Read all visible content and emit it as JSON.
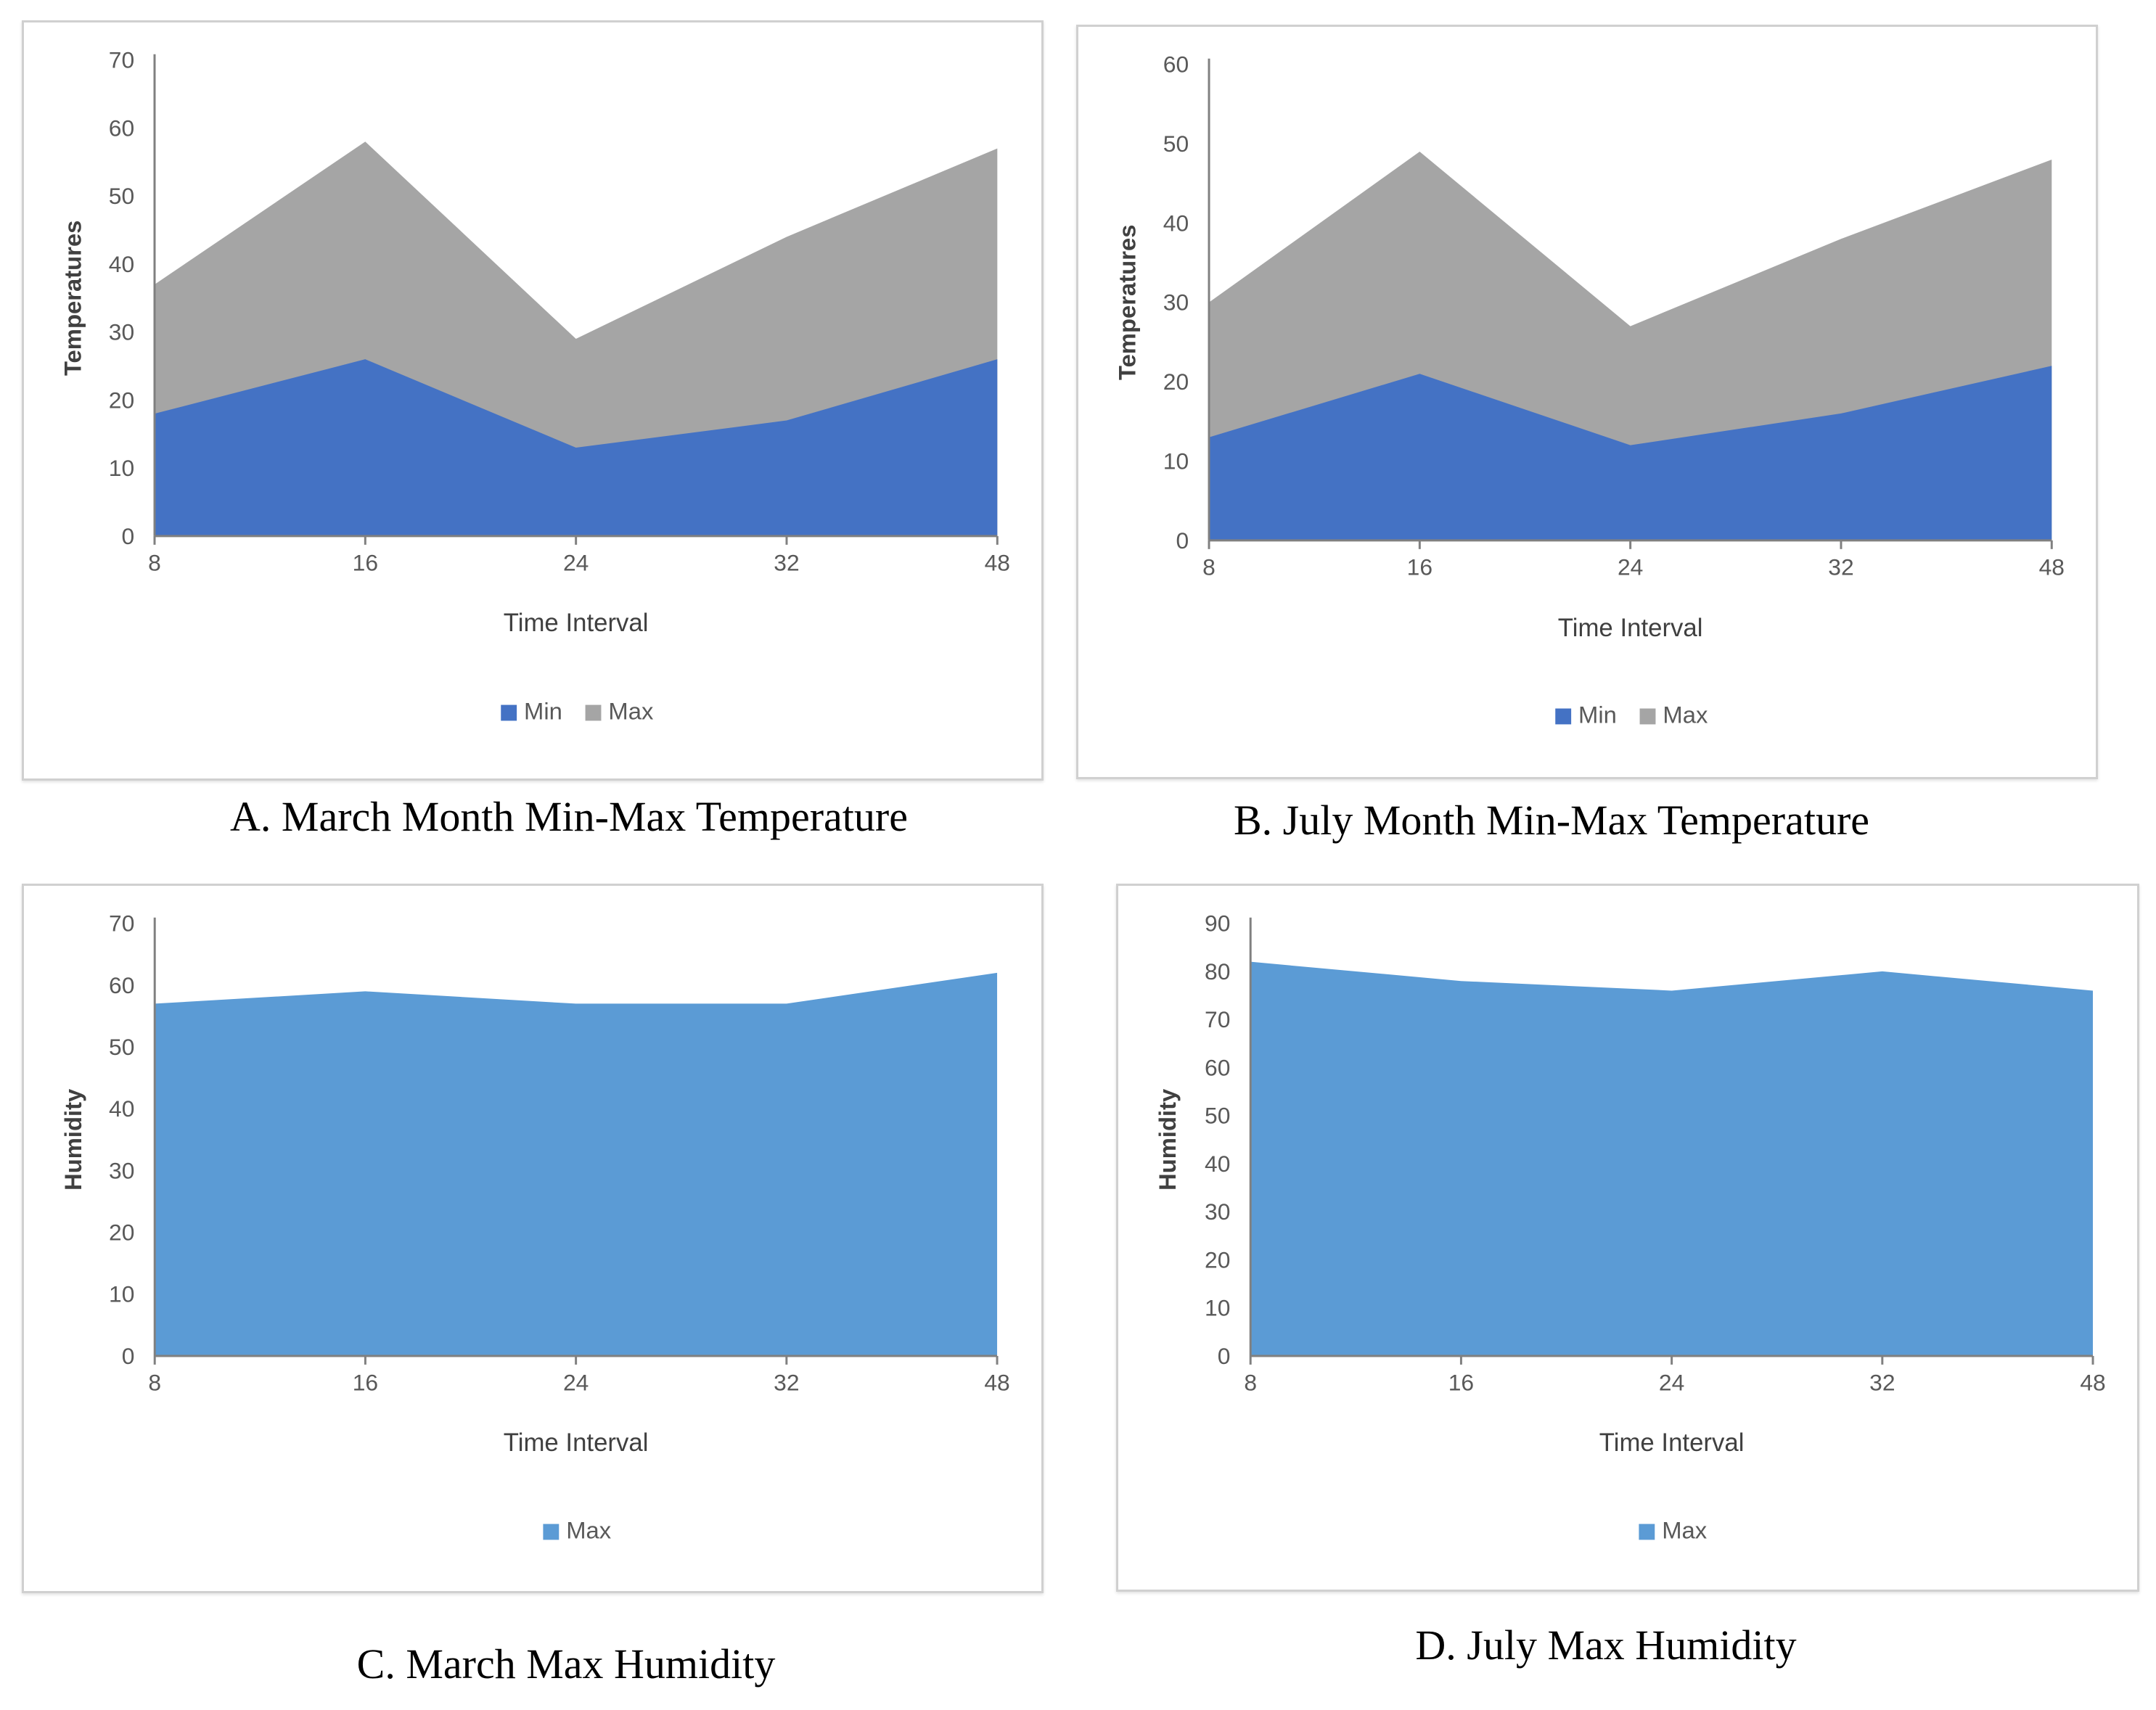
{
  "colors": {
    "min": "#4472c4",
    "max_temp": "#a5a5a5",
    "max_humidity": "#5b9bd5",
    "axis": "#808080",
    "text": "#595959"
  },
  "chart_data": [
    {
      "type": "area",
      "caption": "A. March Month Min-Max Temperature",
      "x": [
        "8",
        "16",
        "24",
        "32",
        "48"
      ],
      "series": [
        {
          "name": "Min",
          "values": [
            18,
            26,
            13,
            17,
            26
          ]
        },
        {
          "name": "Max",
          "values": [
            37,
            58,
            29,
            44,
            57
          ]
        }
      ],
      "xlabel": "Time Interval",
      "ylabel": "Temperatures",
      "ylim": [
        0,
        70
      ],
      "yticks": [
        "0",
        "10",
        "20",
        "30",
        "40",
        "50",
        "60",
        "70"
      ],
      "legend_position": "bottom"
    },
    {
      "type": "area",
      "caption": "B. July Month Min-Max Temperature",
      "x": [
        "8",
        "16",
        "24",
        "32",
        "48"
      ],
      "series": [
        {
          "name": "Min",
          "values": [
            13,
            21,
            12,
            16,
            22
          ]
        },
        {
          "name": "Max",
          "values": [
            30,
            49,
            27,
            38,
            48
          ]
        }
      ],
      "xlabel": "Time Interval",
      "ylabel": "Temperatures",
      "ylim": [
        0,
        60
      ],
      "yticks": [
        "0",
        "10",
        "20",
        "30",
        "40",
        "50",
        "60"
      ],
      "legend_position": "bottom"
    },
    {
      "type": "area",
      "caption": "C. March Max Humidity",
      "x": [
        "8",
        "16",
        "24",
        "32",
        "48"
      ],
      "series": [
        {
          "name": "Max",
          "values": [
            57,
            59,
            57,
            57,
            62
          ]
        }
      ],
      "xlabel": "Time Interval",
      "ylabel": "Humidity",
      "ylim": [
        0,
        70
      ],
      "yticks": [
        "0",
        "10",
        "20",
        "30",
        "40",
        "50",
        "60",
        "70"
      ],
      "legend_position": "bottom"
    },
    {
      "type": "area",
      "caption": "D. July Max Humidity",
      "x": [
        "8",
        "16",
        "24",
        "32",
        "48"
      ],
      "series": [
        {
          "name": "Max",
          "values": [
            82,
            78,
            76,
            80,
            76
          ]
        }
      ],
      "xlabel": "Time Interval",
      "ylabel": "Humidity",
      "ylim": [
        0,
        90
      ],
      "yticks": [
        "0",
        "10",
        "20",
        "30",
        "40",
        "50",
        "60",
        "70",
        "80",
        "90"
      ],
      "legend_position": "bottom"
    }
  ]
}
